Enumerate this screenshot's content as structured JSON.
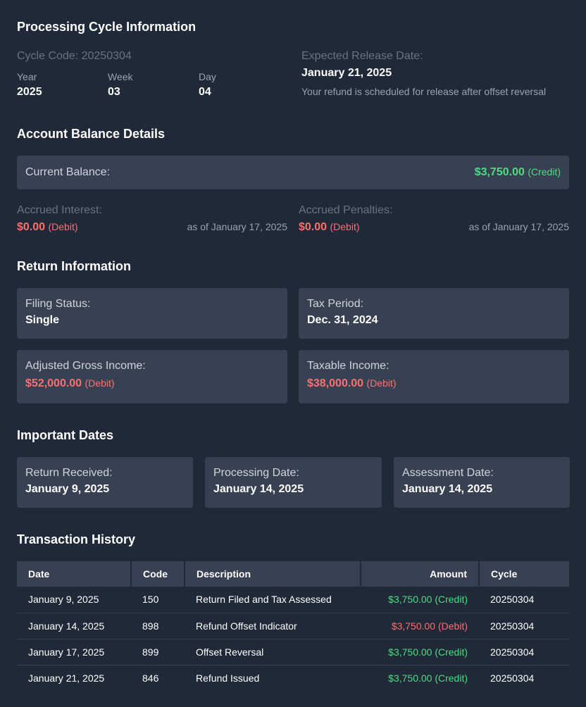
{
  "cycle": {
    "title": "Processing Cycle Information",
    "code_label": "Cycle Code: 20250304",
    "year_label": "Year",
    "year": "2025",
    "week_label": "Week",
    "week": "03",
    "day_label": "Day",
    "day": "04",
    "release_label": "Expected Release Date:",
    "release_date": "January 21, 2025",
    "release_note": "Your refund is scheduled for release after offset reversal"
  },
  "balance": {
    "title": "Account Balance Details",
    "current_label": "Current Balance:",
    "current_amount": "$3,750.00",
    "current_tag": "(Credit)",
    "interest_label": "Accrued Interest:",
    "interest_amount": "$0.00",
    "interest_tag": "(Debit)",
    "interest_asof": "as of January 17, 2025",
    "penalties_label": "Accrued Penalties:",
    "penalties_amount": "$0.00",
    "penalties_tag": "(Debit)",
    "penalties_asof": "as of January 17, 2025"
  },
  "return_info": {
    "title": "Return Information",
    "filing_label": "Filing Status:",
    "filing_value": "Single",
    "period_label": "Tax Period:",
    "period_value": "Dec. 31, 2024",
    "agi_label": "Adjusted Gross Income:",
    "agi_amount": "$52,000.00",
    "agi_tag": "(Debit)",
    "taxable_label": "Taxable Income:",
    "taxable_amount": "$38,000.00",
    "taxable_tag": "(Debit)"
  },
  "dates": {
    "title": "Important Dates",
    "received_label": "Return Received:",
    "received_value": "January 9, 2025",
    "processing_label": "Processing Date:",
    "processing_value": "January 14, 2025",
    "assessment_label": "Assessment Date:",
    "assessment_value": "January 14, 2025"
  },
  "transactions": {
    "title": "Transaction History",
    "headers": {
      "date": "Date",
      "code": "Code",
      "description": "Description",
      "amount": "Amount",
      "cycle": "Cycle"
    },
    "rows": [
      {
        "date": "January 9, 2025",
        "code": "150",
        "description": "Return Filed and Tax Assessed",
        "amount": "$3,750.00 (Credit)",
        "type": "credit",
        "cycle": "20250304"
      },
      {
        "date": "January 14, 2025",
        "code": "898",
        "description": "Refund Offset Indicator",
        "amount": "$3,750.00 (Debit)",
        "type": "debit",
        "cycle": "20250304"
      },
      {
        "date": "January 17, 2025",
        "code": "899",
        "description": "Offset Reversal",
        "amount": "$3,750.00 (Credit)",
        "type": "credit",
        "cycle": "20250304"
      },
      {
        "date": "January 21, 2025",
        "code": "846",
        "description": "Refund Issued",
        "amount": "$3,750.00 (Credit)",
        "type": "credit",
        "cycle": "20250304"
      }
    ]
  },
  "colors": {
    "background": "#1f2937",
    "card": "#374151",
    "credit": "#4ade80",
    "debit": "#f87171"
  }
}
